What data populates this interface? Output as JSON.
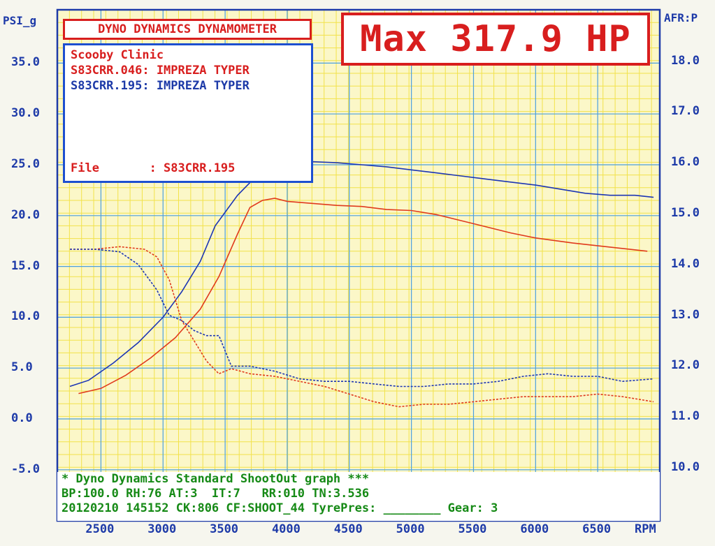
{
  "header": {
    "title_box": "DYNO DYNAMICS DYNAMOMETER",
    "max_label": "Max 317.9 HP"
  },
  "info": {
    "shop": "Scooby Clinic",
    "run1": "S83CRR.046: IMPREZA TYPER",
    "run2": "S83CRR.195: IMPREZA TYPER",
    "file_label": "File       : S83CRR.195"
  },
  "footer": {
    "line1": "* Dyno Dynamics Standard ShootOut graph ***",
    "line2": "BP:100.0 RH:76 AT:3  IT:7   RR:010 TN:3.536",
    "line3": "20120210 145152 CK:806 CF:SHOOT_44 TyrePres: ________ Gear: 3"
  },
  "colors": {
    "red_run": "#e03a1c",
    "blue_run": "#1c35b4",
    "grid_major": "#4a9fe0",
    "grid_minor": "#f2e24a",
    "plot_bg": "#fbf7c8",
    "axis_text": "#1d3aa8"
  },
  "chart_data": {
    "type": "line",
    "xlabel": "RPM",
    "ylabel_left": "PSI_g",
    "ylabel_right": "AFR:P",
    "xlim": [
      2250,
      7000
    ],
    "ylim_left": [
      -5.0,
      37.5
    ],
    "ylim_right": [
      10.0,
      18.5
    ],
    "x_ticks": [
      "2500",
      "3000",
      "3500",
      "4000",
      "4500",
      "5000",
      "5500",
      "6000",
      "6500"
    ],
    "y_ticks_left": [
      "-5.0",
      "0.0",
      "5.0",
      "10.0",
      "15.0",
      "20.0",
      "25.0",
      "30.0",
      "35.0"
    ],
    "y_ticks_right": [
      "10.0",
      "11.0",
      "12.0",
      "13.0",
      "14.0",
      "15.0",
      "16.0",
      "17.0",
      "18.0"
    ],
    "series": [
      {
        "color": "red",
        "axis": "left",
        "style": "solid",
        "x": [
          2320,
          2500,
          2700,
          2900,
          3100,
          3300,
          3450,
          3600,
          3700,
          3800,
          3900,
          4000,
          4200,
          4400,
          4600,
          4800,
          5000,
          5200,
          5500,
          5800,
          6000,
          6300,
          6600,
          6900
        ],
        "y": [
          2.5,
          3.0,
          4.3,
          6.0,
          8.0,
          10.8,
          14.0,
          18.2,
          20.8,
          21.5,
          21.7,
          21.4,
          21.2,
          21.0,
          20.9,
          20.6,
          20.5,
          20.1,
          19.2,
          18.3,
          17.8,
          17.3,
          16.9,
          16.5
        ]
      },
      {
        "color": "blue",
        "axis": "left",
        "style": "solid",
        "x": [
          2250,
          2400,
          2600,
          2800,
          3000,
          3150,
          3300,
          3420,
          3600,
          3800,
          4000,
          4200,
          4400,
          4600,
          4800,
          5000,
          5200,
          5400,
          5600,
          5800,
          6000,
          6200,
          6400,
          6600,
          6800,
          6950
        ],
        "y": [
          3.2,
          3.8,
          5.5,
          7.5,
          10.0,
          12.5,
          15.5,
          19.0,
          22.0,
          24.5,
          25.2,
          25.3,
          25.2,
          25.0,
          24.8,
          24.5,
          24.2,
          23.9,
          23.6,
          23.3,
          23.0,
          22.6,
          22.2,
          22.0,
          22.0,
          21.8
        ]
      },
      {
        "color": "red",
        "axis": "right",
        "style": "dashed",
        "x": [
          2250,
          2450,
          2650,
          2850,
          2950,
          3050,
          3150,
          3250,
          3350,
          3450,
          3550,
          3700,
          3900,
          4100,
          4300,
          4500,
          4700,
          4900,
          5100,
          5300,
          5500,
          5700,
          5900,
          6100,
          6300,
          6500,
          6700,
          6950
        ],
        "y": [
          14.3,
          14.3,
          14.35,
          14.3,
          14.15,
          13.7,
          12.9,
          12.5,
          12.1,
          11.85,
          11.95,
          11.85,
          11.8,
          11.7,
          11.6,
          11.45,
          11.3,
          11.2,
          11.25,
          11.25,
          11.3,
          11.35,
          11.4,
          11.4,
          11.4,
          11.45,
          11.4,
          11.3
        ]
      },
      {
        "color": "blue",
        "axis": "right",
        "style": "dashed",
        "x": [
          2250,
          2450,
          2650,
          2800,
          2950,
          3050,
          3150,
          3250,
          3350,
          3450,
          3550,
          3700,
          3900,
          4100,
          4300,
          4500,
          4700,
          4900,
          5100,
          5300,
          5500,
          5700,
          5900,
          6100,
          6300,
          6500,
          6700,
          6950
        ],
        "y": [
          14.3,
          14.3,
          14.25,
          14.0,
          13.5,
          13.0,
          12.9,
          12.7,
          12.6,
          12.6,
          12.0,
          12.0,
          11.9,
          11.75,
          11.7,
          11.7,
          11.65,
          11.6,
          11.6,
          11.65,
          11.65,
          11.7,
          11.8,
          11.85,
          11.8,
          11.8,
          11.7,
          11.75
        ]
      }
    ]
  }
}
